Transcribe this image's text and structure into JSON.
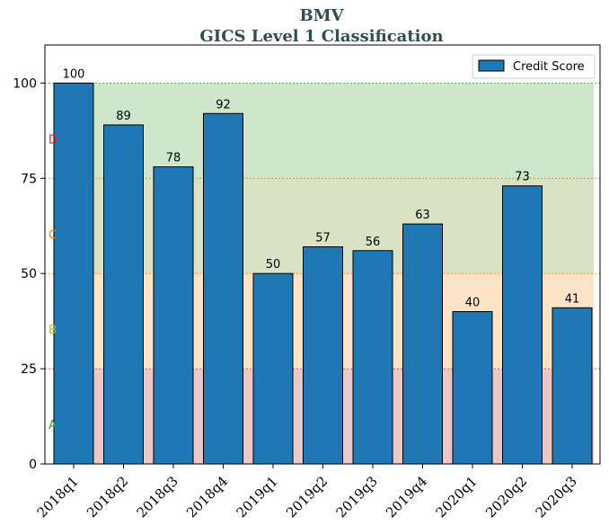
{
  "chart_data": {
    "type": "bar",
    "title": "BMV",
    "subtitle": "GICS Level 1 Classification",
    "categories": [
      "2018q1",
      "2018q2",
      "2018q3",
      "2018q4",
      "2019q1",
      "2019q2",
      "2019q3",
      "2019q4",
      "2020q1",
      "2020q2",
      "2020q3"
    ],
    "series": [
      {
        "name": "Credit Score",
        "values": [
          100,
          89,
          78,
          92,
          50,
          57,
          56,
          63,
          40,
          73,
          41
        ],
        "color": "#1f77b4"
      }
    ],
    "ylim": [
      0,
      110
    ],
    "yticks": [
      0,
      25,
      50,
      75,
      100
    ],
    "legend_position": "top-right",
    "bands": [
      {
        "label": "A",
        "from": 0,
        "to": 25,
        "fill": "#e8c8c8",
        "line": "#d62728",
        "label_color": "#2ca02c"
      },
      {
        "label": "B",
        "from": 25,
        "to": 50,
        "fill": "#fde4c8",
        "line": "#ff7f0e",
        "label_color": "#bcbd22"
      },
      {
        "label": "C",
        "from": 50,
        "to": 75,
        "fill": "#d9e2c4",
        "line": "#8c9a2c",
        "label_color": "#ff7f0e"
      },
      {
        "label": "D",
        "from": 75,
        "to": 100,
        "fill": "#cde6cc",
        "line": "#2ca02c",
        "label_color": "#d62728"
      }
    ]
  }
}
